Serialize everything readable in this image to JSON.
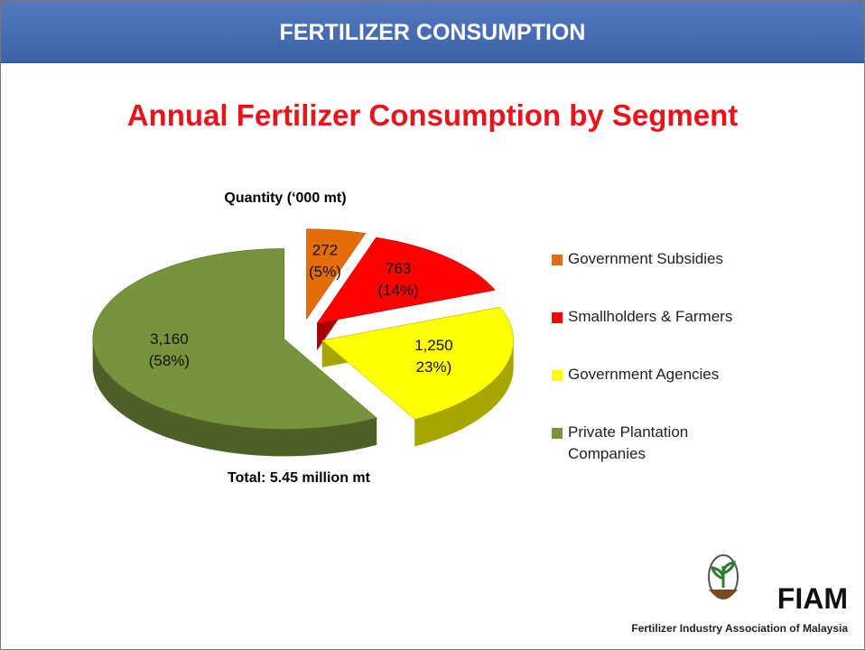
{
  "header": "FERTILIZER CONSUMPTION",
  "chart_data": {
    "type": "pie",
    "title": "Annual Fertilizer Consumption by Segment",
    "subtitle": "Quantity (‘000 mt)",
    "total_label": "Total: 5.45 million mt",
    "categories": [
      "Government Subsidies",
      "Smallholders & Farmers",
      "Government Agencies",
      "Private Plantation Companies"
    ],
    "values": [
      272,
      763,
      1250,
      3160
    ],
    "value_labels": [
      "272",
      "763",
      "1,250",
      "3,160"
    ],
    "percents": [
      5,
      14,
      23,
      58
    ],
    "percent_labels": [
      "(5%)",
      "(14%)",
      "23%)",
      "(58%)"
    ],
    "colors": [
      "#E46C0A",
      "#FF0000",
      "#FFFF00",
      "#77933C"
    ]
  },
  "logo": {
    "text": "FIAM",
    "caption": "Fertilizer Industry Association of Malaysia"
  }
}
